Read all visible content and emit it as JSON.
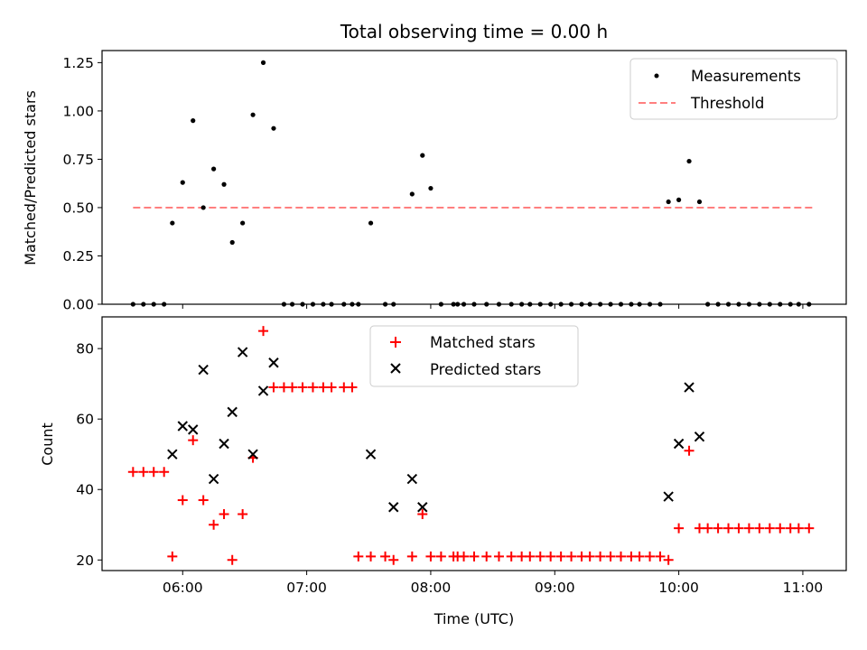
{
  "colors": {
    "measurements": "#000000",
    "threshold": "#ff7f7f",
    "matched": "#ff0000",
    "predicted": "#000000"
  },
  "chart_data": [
    {
      "type": "scatter",
      "title": "Total observing time = 0.00 h",
      "xlabel": "",
      "ylabel": "Matched/Predicted stars",
      "ylim": [
        0,
        1.3125
      ],
      "yticks": [
        "0.00",
        "0.25",
        "0.50",
        "0.75",
        "1.00",
        "1.25"
      ],
      "legend_position": "upper right",
      "series": [
        {
          "name": "Measurements",
          "marker": "dot",
          "x": [
            "05:36",
            "05:41",
            "05:46",
            "05:51",
            "05:55",
            "06:00",
            "06:05",
            "06:10",
            "06:15",
            "06:20",
            "06:24",
            "06:29",
            "06:34",
            "06:39",
            "06:44",
            "06:49",
            "06:53",
            "06:58",
            "07:03",
            "07:08",
            "07:12",
            "07:18",
            "07:22",
            "07:25",
            "07:31",
            "07:38",
            "07:42",
            "07:51",
            "07:56",
            "08:00",
            "08:05",
            "08:11",
            "08:13",
            "08:16",
            "08:21",
            "08:27",
            "08:33",
            "08:39",
            "08:44",
            "08:48",
            "08:53",
            "08:58",
            "09:03",
            "09:08",
            "09:13",
            "09:17",
            "09:22",
            "09:27",
            "09:32",
            "09:37",
            "09:41",
            "09:46",
            "09:51",
            "09:55",
            "10:00",
            "10:05",
            "10:10",
            "10:14",
            "10:19",
            "10:24",
            "10:29",
            "10:34",
            "10:39",
            "10:44",
            "10:49",
            "10:54",
            "10:58",
            "11:03"
          ],
          "y": [
            0,
            0,
            0,
            0,
            0.42,
            0.63,
            0.95,
            0.5,
            0.7,
            0.62,
            0.32,
            0.42,
            0.98,
            1.25,
            0.91,
            0,
            0,
            0,
            0,
            0,
            0,
            0,
            0,
            0,
            0.42,
            0,
            0,
            0.57,
            0.77,
            0.6,
            0,
            0,
            0,
            0,
            0,
            0,
            0,
            0,
            0,
            0,
            0,
            0,
            0,
            0,
            0,
            0,
            0,
            0,
            0,
            0,
            0,
            0,
            0,
            0.53,
            0.54,
            0.74,
            0.53,
            0,
            0,
            0,
            0,
            0,
            0,
            0,
            0,
            0,
            0,
            0
          ]
        },
        {
          "name": "Threshold",
          "style": "dashed",
          "x": [
            "05:36",
            "11:06"
          ],
          "y": [
            0.5,
            0.5
          ]
        }
      ]
    },
    {
      "type": "scatter",
      "title": "",
      "xlabel": "Time (UTC)",
      "ylabel": "Count",
      "ylim": [
        17,
        89
      ],
      "yticks": [
        "20",
        "40",
        "60",
        "80"
      ],
      "xticks": [
        "06:00",
        "07:00",
        "08:00",
        "09:00",
        "10:00",
        "11:00"
      ],
      "xlim": [
        "05:21",
        "11:21"
      ],
      "legend_position": "upper center",
      "series": [
        {
          "name": "Matched stars",
          "marker": "plus",
          "x": [
            "05:36",
            "05:41",
            "05:46",
            "05:51",
            "05:55",
            "06:00",
            "06:05",
            "06:10",
            "06:15",
            "06:20",
            "06:24",
            "06:29",
            "06:34",
            "06:39",
            "06:44",
            "06:49",
            "06:53",
            "06:58",
            "07:03",
            "07:08",
            "07:12",
            "07:18",
            "07:22",
            "07:25",
            "07:31",
            "07:38",
            "07:42",
            "07:51",
            "07:56",
            "08:00",
            "08:05",
            "08:11",
            "08:13",
            "08:16",
            "08:21",
            "08:27",
            "08:33",
            "08:39",
            "08:44",
            "08:48",
            "08:53",
            "08:58",
            "09:03",
            "09:08",
            "09:13",
            "09:17",
            "09:22",
            "09:27",
            "09:32",
            "09:37",
            "09:41",
            "09:46",
            "09:51",
            "09:55",
            "10:00",
            "10:05",
            "10:10",
            "10:14",
            "10:19",
            "10:24",
            "10:29",
            "10:34",
            "10:39",
            "10:44",
            "10:49",
            "10:54",
            "10:58",
            "11:03"
          ],
          "y": [
            45,
            45,
            45,
            45,
            21,
            37,
            54,
            37,
            30,
            33,
            20,
            33,
            49,
            85,
            69,
            69,
            69,
            69,
            69,
            69,
            69,
            69,
            69,
            21,
            21,
            21,
            20,
            21,
            33,
            21,
            21,
            21,
            21,
            21,
            21,
            21,
            21,
            21,
            21,
            21,
            21,
            21,
            21,
            21,
            21,
            21,
            21,
            21,
            21,
            21,
            21,
            21,
            21,
            20,
            29,
            51,
            29,
            29,
            29,
            29,
            29,
            29,
            29,
            29,
            29,
            29,
            29,
            29
          ]
        },
        {
          "name": "Predicted stars",
          "marker": "x",
          "x": [
            "05:55",
            "06:00",
            "06:05",
            "06:10",
            "06:15",
            "06:20",
            "06:24",
            "06:29",
            "06:34",
            "06:39",
            "06:44",
            "07:31",
            "07:42",
            "07:51",
            "07:56",
            "09:55",
            "10:00",
            "10:05",
            "10:10"
          ],
          "y": [
            50,
            58,
            57,
            74,
            43,
            53,
            62,
            79,
            50,
            68,
            76,
            50,
            35,
            43,
            35,
            38,
            53,
            69,
            55
          ]
        }
      ]
    }
  ]
}
